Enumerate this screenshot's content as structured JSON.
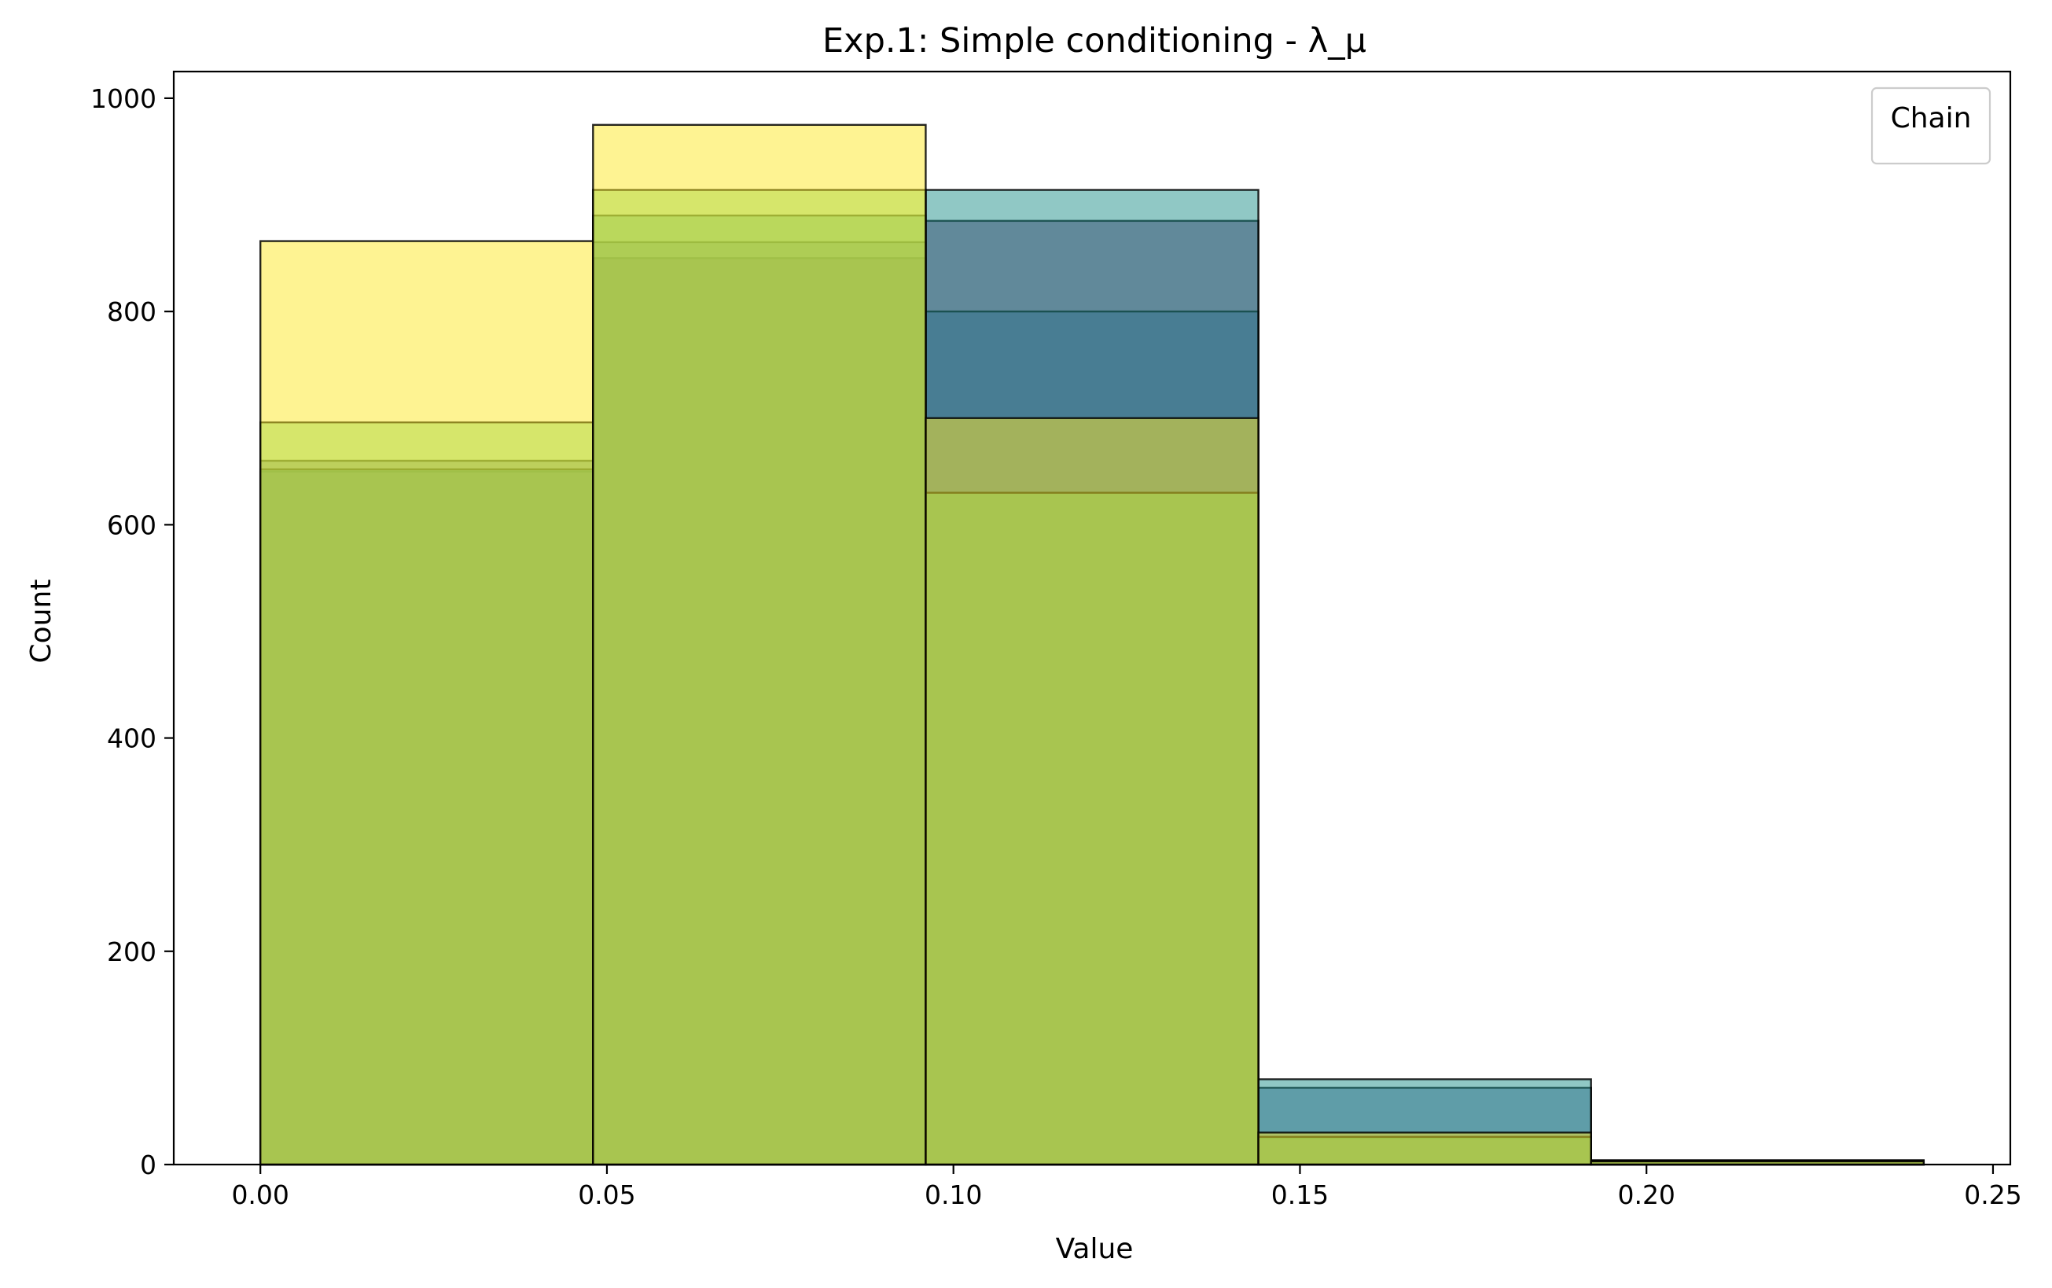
{
  "chart_data": {
    "type": "bar",
    "title": "Exp.1: Simple conditioning - λ_μ",
    "xlabel": "Value",
    "ylabel": "Count",
    "xlim": [
      -0.0125,
      0.2525
    ],
    "ylim": [
      0,
      1025
    ],
    "xticks": [
      0.0,
      0.05,
      0.1,
      0.15,
      0.2,
      0.25
    ],
    "xtick_labels": [
      "0.00",
      "0.05",
      "0.10",
      "0.15",
      "0.20",
      "0.25"
    ],
    "yticks": [
      0,
      200,
      400,
      600,
      800,
      1000
    ],
    "ytick_labels": [
      "0",
      "200",
      "400",
      "600",
      "800",
      "1000"
    ],
    "bin_edges": [
      0.0,
      0.048,
      0.096,
      0.144,
      0.192,
      0.24
    ],
    "grid": false,
    "legend": {
      "title": "Chain",
      "placement": "top-right",
      "entries": []
    },
    "series": [
      {
        "color": "#440154",
        "values": [
          650,
          850,
          885,
          25,
          4
        ]
      },
      {
        "color": "#3b528b",
        "values": [
          660,
          865,
          800,
          72,
          4
        ]
      },
      {
        "color": "#21918c",
        "values": [
          652,
          890,
          914,
          80,
          3
        ]
      },
      {
        "color": "#5ec962",
        "values": [
          696,
          914,
          630,
          26,
          3
        ]
      },
      {
        "color": "#fde725",
        "values": [
          866,
          975,
          700,
          30,
          3
        ]
      }
    ]
  }
}
